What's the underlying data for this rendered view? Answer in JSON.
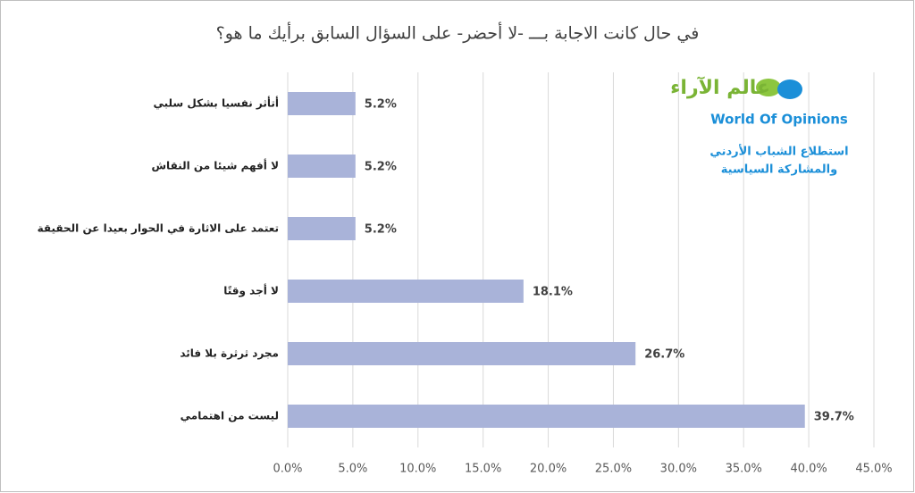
{
  "chart_data": {
    "type": "bar",
    "orientation": "horizontal",
    "title": "في حال كانت الاجابة بـــ -لا أحضر- على السؤال السابق  برأيك ما هو؟",
    "categories": [
      "أتأثر نفسيا بشكل سلبي",
      "لا أفهم شيئا من النقاش",
      "تعتمد على الاثارة في الحوار بعيدا عن الحقيقة",
      "لا أجد وقتًا",
      "مجرد ثرثرة بلا فائد",
      "ليست من اهتمامي"
    ],
    "values": [
      5.2,
      5.2,
      5.2,
      18.1,
      26.7,
      39.7
    ],
    "value_labels": [
      "5.2%",
      "5.2%",
      "5.2%",
      "18.1%",
      "26.7%",
      "39.7%"
    ],
    "color": "#a9b3d9",
    "xlim": [
      0,
      45
    ],
    "xticks": [
      {
        "value": 0,
        "label": "0.0%"
      },
      {
        "value": 5,
        "label": "5.0%"
      },
      {
        "value": 10,
        "label": "10.0%"
      },
      {
        "value": 15,
        "label": "15.0%"
      },
      {
        "value": 20,
        "label": "20.0%"
      },
      {
        "value": 25,
        "label": "25.0%"
      },
      {
        "value": 30,
        "label": "30.0%"
      },
      {
        "value": 35,
        "label": "35.0%"
      },
      {
        "value": 40,
        "label": "40.0%"
      },
      {
        "value": 45,
        "label": "45.0%"
      }
    ],
    "grid": true,
    "annotations": [
      "عالم الآراء",
      "World Of Opinions",
      "استطلاع الشباب الأردني",
      "والمشاركة السياسية"
    ]
  }
}
